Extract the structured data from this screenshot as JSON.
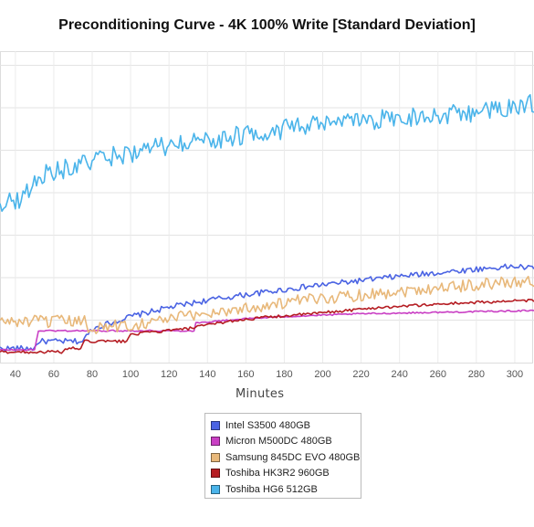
{
  "chart_data": {
    "type": "line",
    "title": "Preconditioning Curve - 4K 100% Write [Standard Deviation]",
    "xlabel": "Minutes",
    "ylabel": "",
    "xlim": [
      32,
      310
    ],
    "ylim": [
      0,
      440
    ],
    "x_ticks": [
      40,
      60,
      80,
      100,
      120,
      140,
      160,
      180,
      200,
      220,
      240,
      260,
      280,
      300
    ],
    "grid": true,
    "legend_position": "bottom-center",
    "series": [
      {
        "name": "Intel S3500 480GB",
        "color": "#4a63e3",
        "noise": 4,
        "points": [
          [
            32,
            20
          ],
          [
            50,
            20
          ],
          [
            52,
            30
          ],
          [
            75,
            30
          ],
          [
            80,
            48
          ],
          [
            100,
            65
          ],
          [
            120,
            78
          ],
          [
            140,
            88
          ],
          [
            160,
            96
          ],
          [
            180,
            103
          ],
          [
            200,
            110
          ],
          [
            220,
            116
          ],
          [
            240,
            122
          ],
          [
            260,
            127
          ],
          [
            280,
            132
          ],
          [
            300,
            136
          ],
          [
            310,
            133
          ]
        ]
      },
      {
        "name": "Micron M500DC 480GB",
        "color": "#c93fc4",
        "noise": 1,
        "points": [
          [
            32,
            18
          ],
          [
            50,
            18
          ],
          [
            52,
            45
          ],
          [
            100,
            45
          ],
          [
            133,
            45
          ],
          [
            134,
            56
          ],
          [
            160,
            62
          ],
          [
            180,
            65
          ],
          [
            200,
            67
          ],
          [
            220,
            69
          ],
          [
            240,
            70
          ],
          [
            260,
            71
          ],
          [
            280,
            72
          ],
          [
            300,
            73
          ],
          [
            310,
            74
          ]
        ]
      },
      {
        "name": "Samsung 845DC EVO 480GB",
        "color": "#e8b87a",
        "noise": 9,
        "points": [
          [
            32,
            58
          ],
          [
            76,
            58
          ],
          [
            78,
            49
          ],
          [
            100,
            53
          ],
          [
            120,
            62
          ],
          [
            140,
            70
          ],
          [
            160,
            77
          ],
          [
            180,
            84
          ],
          [
            200,
            91
          ],
          [
            220,
            96
          ],
          [
            240,
            101
          ],
          [
            260,
            106
          ],
          [
            280,
            110
          ],
          [
            300,
            114
          ],
          [
            310,
            116
          ]
        ]
      },
      {
        "name": "Toshiba HK3R2 960GB",
        "color": "#b51c22",
        "noise": 2,
        "points": [
          [
            32,
            15
          ],
          [
            65,
            15
          ],
          [
            67,
            20
          ],
          [
            74,
            20
          ],
          [
            76,
            30
          ],
          [
            98,
            30
          ],
          [
            100,
            40
          ],
          [
            130,
            48
          ],
          [
            150,
            58
          ],
          [
            170,
            64
          ],
          [
            190,
            68
          ],
          [
            210,
            73
          ],
          [
            230,
            78
          ],
          [
            250,
            81
          ],
          [
            270,
            84
          ],
          [
            290,
            86
          ],
          [
            300,
            87
          ],
          [
            310,
            88
          ]
        ]
      },
      {
        "name": "Toshiba HG6 512GB",
        "color": "#4ab4ea",
        "noise": 14,
        "points": [
          [
            32,
            226
          ],
          [
            40,
            228
          ],
          [
            45,
            238
          ],
          [
            55,
            268
          ],
          [
            70,
            276
          ],
          [
            85,
            288
          ],
          [
            100,
            296
          ],
          [
            120,
            306
          ],
          [
            140,
            314
          ],
          [
            160,
            322
          ],
          [
            180,
            330
          ],
          [
            200,
            336
          ],
          [
            220,
            341
          ],
          [
            240,
            346
          ],
          [
            260,
            350
          ],
          [
            280,
            354
          ],
          [
            300,
            359
          ],
          [
            310,
            366
          ]
        ]
      }
    ]
  }
}
